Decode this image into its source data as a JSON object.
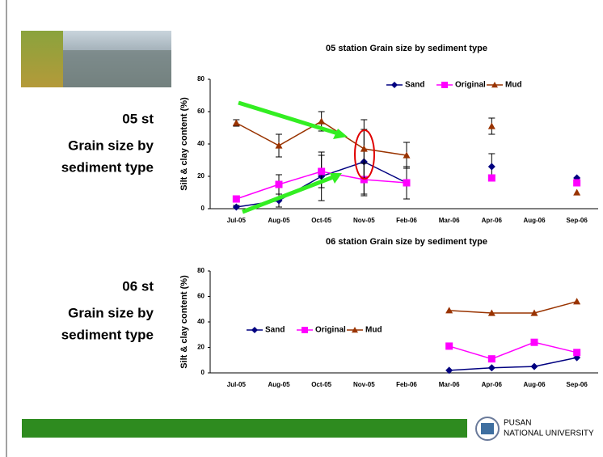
{
  "slide": {
    "st05": {
      "station": "05 st",
      "line1": "Grain size by",
      "line2": "sediment type"
    },
    "st06": {
      "station": "06 st",
      "line1": "Grain size by",
      "line2": "sediment type"
    },
    "logo": {
      "line1": "PUSAN",
      "line2": "NATIONAL UNIVERSITY"
    }
  },
  "chart_data": [
    {
      "type": "line",
      "title": "05 station Grain size by sediment type",
      "y_label": "Silt & clay content (%)",
      "categories": [
        "Jul-05",
        "Aug-05",
        "Oct-05",
        "Nov-05",
        "Feb-06",
        "Mar-06",
        "Apr-06",
        "Aug-06",
        "Sep-06"
      ],
      "ylim": [
        0,
        80
      ],
      "yticks": [
        0,
        20,
        40,
        60,
        80
      ],
      "legend": "top-right",
      "series": [
        {
          "name": "Sand",
          "color": "#000080",
          "marker": "diamond",
          "values": [
            1,
            5,
            20,
            29,
            16,
            null,
            26,
            null,
            19
          ],
          "errors": [
            1,
            4,
            15,
            20,
            10,
            null,
            8,
            null,
            null
          ]
        },
        {
          "name": "Original",
          "color": "#ff00ff",
          "marker": "square",
          "values": [
            6,
            15,
            23,
            18,
            16,
            null,
            19,
            null,
            16
          ],
          "errors": [
            2,
            6,
            10,
            10,
            10,
            null,
            null,
            null,
            null
          ]
        },
        {
          "name": "Mud",
          "color": "#993300",
          "marker": "triangle",
          "values": [
            53,
            39,
            54,
            37,
            33,
            null,
            51,
            null,
            10
          ],
          "errors": [
            2,
            7,
            6,
            18,
            8,
            null,
            5,
            null,
            null
          ]
        }
      ]
    },
    {
      "type": "line",
      "title": "06 station Grain size by sediment type",
      "y_label": "Silt & clay content (%)",
      "categories": [
        "Jul-05",
        "Aug-05",
        "Oct-05",
        "Nov-05",
        "Feb-06",
        "Mar-06",
        "Apr-06",
        "Aug-06",
        "Sep-06"
      ],
      "ylim": [
        0,
        80
      ],
      "yticks": [
        0,
        20,
        40,
        60,
        80
      ],
      "legend": "center-left",
      "series": [
        {
          "name": "Sand",
          "color": "#000080",
          "marker": "diamond",
          "values": [
            null,
            null,
            null,
            null,
            null,
            2,
            4,
            5,
            12
          ]
        },
        {
          "name": "Original",
          "color": "#ff00ff",
          "marker": "square",
          "values": [
            null,
            null,
            null,
            null,
            null,
            21,
            11,
            24,
            16
          ]
        },
        {
          "name": "Mud",
          "color": "#993300",
          "marker": "triangle",
          "values": [
            null,
            null,
            null,
            null,
            null,
            49,
            47,
            47,
            56
          ]
        }
      ]
    }
  ]
}
